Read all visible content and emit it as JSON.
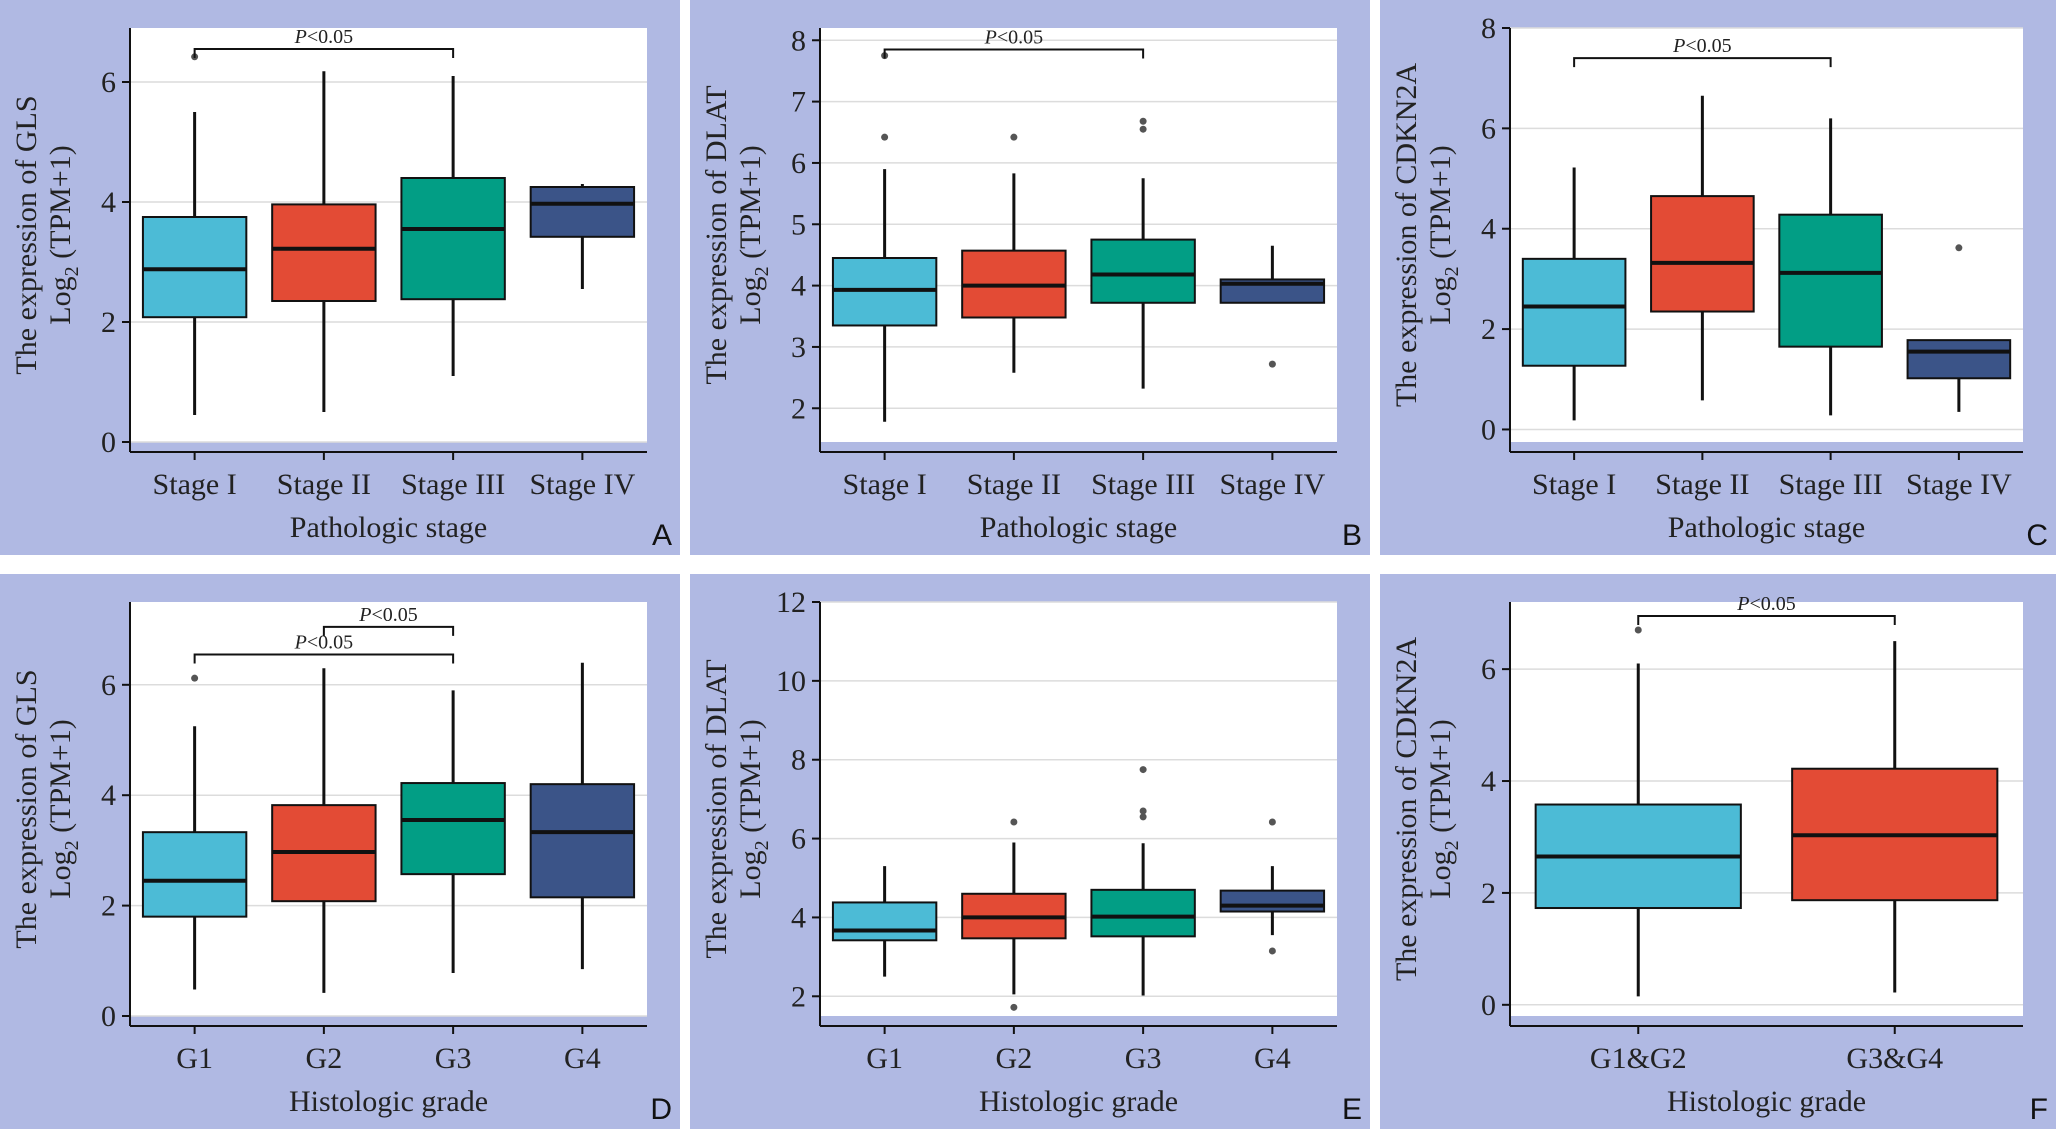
{
  "colors": {
    "background": "#b0b9e3",
    "plot": "#ffffff",
    "grid": "#dcdcdc",
    "axis": "#111111",
    "outlier": "#555555"
  },
  "chart_data": [
    {
      "panel": "A",
      "type": "box",
      "xlabel": "Pathologic stage",
      "ylabel": "The expression of GLS",
      "ylabel2_prefix": "Log",
      "ylabel2_sub": "2",
      "ylabel2_suffix": " (TPM+1)",
      "ylim": [
        0,
        6.9
      ],
      "yticks": [
        0,
        2,
        4,
        6
      ],
      "categories": [
        "Stage I",
        "Stage II",
        "Stage III",
        "Stage IV"
      ],
      "colors": [
        "#4cbbd6",
        "#e34b35",
        "#029e85",
        "#3b5488"
      ],
      "boxes": [
        {
          "min": 0.45,
          "q1": 2.08,
          "median": 2.88,
          "q3": 3.75,
          "max": 5.5,
          "outliers": [
            6.42
          ]
        },
        {
          "min": 0.5,
          "q1": 2.35,
          "median": 3.22,
          "q3": 3.96,
          "max": 6.18,
          "outliers": []
        },
        {
          "min": 1.1,
          "q1": 2.38,
          "median": 3.55,
          "q3": 4.4,
          "max": 6.1,
          "outliers": []
        },
        {
          "min": 2.55,
          "q1": 3.42,
          "median": 3.97,
          "q3": 4.25,
          "max": 4.3,
          "outliers": []
        }
      ],
      "significance": [
        {
          "from": 0,
          "to": 2,
          "level": 6.55,
          "label": "P<0.05"
        }
      ]
    },
    {
      "panel": "B",
      "type": "box",
      "xlabel": "Pathologic stage",
      "ylabel": "The expression of DLAT",
      "ylabel2_prefix": "Log",
      "ylabel2_sub": "2",
      "ylabel2_suffix": " (TPM+1)",
      "ylim": [
        1.45,
        8.2
      ],
      "yticks": [
        2,
        3,
        4,
        5,
        6,
        7,
        8
      ],
      "categories": [
        "Stage I",
        "Stage II",
        "Stage III",
        "Stage IV"
      ],
      "colors": [
        "#4cbbd6",
        "#e34b35",
        "#029e85",
        "#3b5488"
      ],
      "boxes": [
        {
          "min": 1.78,
          "q1": 3.35,
          "median": 3.93,
          "q3": 4.45,
          "max": 5.9,
          "outliers": [
            6.42,
            7.75
          ]
        },
        {
          "min": 2.58,
          "q1": 3.48,
          "median": 4.0,
          "q3": 4.57,
          "max": 5.83,
          "outliers": [
            6.42
          ]
        },
        {
          "min": 2.32,
          "q1": 3.72,
          "median": 4.18,
          "q3": 4.75,
          "max": 5.75,
          "outliers": [
            6.55,
            6.68
          ]
        },
        {
          "min": 3.72,
          "q1": 3.72,
          "median": 4.03,
          "q3": 4.1,
          "max": 4.65,
          "outliers": [
            2.72
          ]
        }
      ],
      "significance": [
        {
          "from": 0,
          "to": 2,
          "level": 7.85,
          "label": "P<0.05"
        }
      ]
    },
    {
      "panel": "C",
      "type": "box",
      "xlabel": "Pathologic stage",
      "ylabel": "The expression of CDKN2A",
      "ylabel2_prefix": "Log",
      "ylabel2_sub": "2",
      "ylabel2_suffix": " (TPM+1)",
      "ylim": [
        -0.25,
        8
      ],
      "yticks": [
        0,
        2,
        4,
        6,
        8
      ],
      "categories": [
        "Stage I",
        "Stage II",
        "Stage III",
        "Stage IV"
      ],
      "colors": [
        "#4cbbd6",
        "#e34b35",
        "#029e85",
        "#3b5488"
      ],
      "boxes": [
        {
          "min": 0.18,
          "q1": 1.27,
          "median": 2.45,
          "q3": 3.4,
          "max": 5.22,
          "outliers": []
        },
        {
          "min": 0.58,
          "q1": 2.35,
          "median": 3.32,
          "q3": 4.65,
          "max": 6.65,
          "outliers": []
        },
        {
          "min": 0.28,
          "q1": 1.65,
          "median": 3.12,
          "q3": 4.28,
          "max": 6.2,
          "outliers": []
        },
        {
          "min": 0.35,
          "q1": 1.02,
          "median": 1.55,
          "q3": 1.78,
          "max": 1.78,
          "outliers": [
            3.62
          ]
        }
      ],
      "significance": [
        {
          "from": 0,
          "to": 2,
          "level": 7.4,
          "label": "P<0.05"
        }
      ]
    },
    {
      "panel": "D",
      "type": "box",
      "xlabel": "Histologic grade",
      "ylabel": "The expression of GLS",
      "ylabel2_prefix": "Log",
      "ylabel2_sub": "2",
      "ylabel2_suffix": " (TPM+1)",
      "ylim": [
        0,
        7.5
      ],
      "yticks": [
        0,
        2,
        4,
        6
      ],
      "categories": [
        "G1",
        "G2",
        "G3",
        "G4"
      ],
      "colors": [
        "#4cbbd6",
        "#e34b35",
        "#029e85",
        "#3b5488"
      ],
      "boxes": [
        {
          "min": 0.48,
          "q1": 1.8,
          "median": 2.45,
          "q3": 3.33,
          "max": 5.25,
          "outliers": [
            6.12
          ]
        },
        {
          "min": 0.42,
          "q1": 2.08,
          "median": 2.97,
          "q3": 3.82,
          "max": 6.3,
          "outliers": []
        },
        {
          "min": 0.78,
          "q1": 2.57,
          "median": 3.55,
          "q3": 4.22,
          "max": 5.9,
          "outliers": []
        },
        {
          "min": 0.85,
          "q1": 2.15,
          "median": 3.33,
          "q3": 4.2,
          "max": 6.4,
          "outliers": []
        }
      ],
      "significance": [
        {
          "from": 0,
          "to": 2,
          "level": 6.55,
          "label": "P<0.05"
        },
        {
          "from": 1,
          "to": 2,
          "level": 7.05,
          "label": "P<0.05"
        }
      ]
    },
    {
      "panel": "E",
      "type": "box",
      "xlabel": "Histologic grade",
      "ylabel": "The expression of DLAT",
      "ylabel2_prefix": "Log",
      "ylabel2_sub": "2",
      "ylabel2_suffix": " (TPM+1)",
      "ylim": [
        1.5,
        12
      ],
      "yticks": [
        2,
        4,
        6,
        8,
        10,
        12
      ],
      "categories": [
        "G1",
        "G2",
        "G3",
        "G4"
      ],
      "colors": [
        "#4cbbd6",
        "#e34b35",
        "#029e85",
        "#3b5488"
      ],
      "boxes": [
        {
          "min": 2.5,
          "q1": 3.42,
          "median": 3.67,
          "q3": 4.38,
          "max": 5.3,
          "outliers": []
        },
        {
          "min": 2.05,
          "q1": 3.47,
          "median": 4.0,
          "q3": 4.6,
          "max": 5.9,
          "outliers": [
            1.72,
            6.42
          ]
        },
        {
          "min": 2.02,
          "q1": 3.52,
          "median": 4.02,
          "q3": 4.7,
          "max": 5.88,
          "outliers": [
            6.55,
            6.7,
            7.75
          ]
        },
        {
          "min": 3.55,
          "q1": 4.15,
          "median": 4.3,
          "q3": 4.68,
          "max": 5.3,
          "outliers": [
            3.15,
            6.42
          ]
        }
      ],
      "significance": []
    },
    {
      "panel": "F",
      "type": "box",
      "xlabel": "Histologic grade",
      "ylabel": "The expression of CDKN2A",
      "ylabel2_prefix": "Log",
      "ylabel2_sub": "2",
      "ylabel2_suffix": " (TPM+1)",
      "ylim": [
        -0.2,
        7.2
      ],
      "yticks": [
        0,
        2,
        4,
        6
      ],
      "categories": [
        "G1&G2",
        "G3&G4"
      ],
      "colors": [
        "#4cbbd6",
        "#e34b35"
      ],
      "boxes": [
        {
          "min": 0.15,
          "q1": 1.73,
          "median": 2.65,
          "q3": 3.58,
          "max": 6.1,
          "outliers": [
            6.7
          ]
        },
        {
          "min": 0.22,
          "q1": 1.87,
          "median": 3.03,
          "q3": 4.22,
          "max": 6.5,
          "outliers": []
        }
      ],
      "significance": [
        {
          "from": 0,
          "to": 1,
          "level": 6.95,
          "label": "P<0.05"
        }
      ]
    }
  ]
}
